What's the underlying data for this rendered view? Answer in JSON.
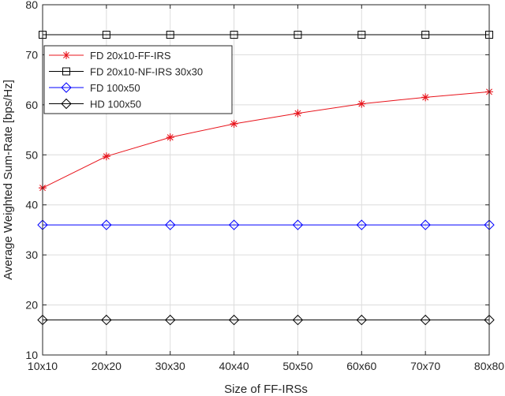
{
  "chart_data": {
    "type": "line",
    "title": "",
    "xlabel": "Size of FF-IRSs",
    "ylabel": "Average Weighted Sum-Rate [bps/Hz]",
    "categories": [
      "10x10",
      "20x20",
      "30x30",
      "40x40",
      "50x50",
      "60x60",
      "70x70",
      "80x80"
    ],
    "ylim": [
      10,
      80
    ],
    "yticks": [
      "10",
      "20",
      "30",
      "40",
      "50",
      "60",
      "70",
      "80"
    ],
    "grid": true,
    "legend_position": "top-left",
    "series": [
      {
        "name": "FD 20x10-FF-IRS",
        "color": "#e8141c",
        "marker": "star",
        "values": [
          43.4,
          49.7,
          53.5,
          56.2,
          58.3,
          60.2,
          61.5,
          62.6
        ]
      },
      {
        "name": "FD 20x10-NF-IRS 30x30",
        "color": "#000000",
        "marker": "square",
        "values": [
          74,
          74,
          74,
          74,
          74,
          74,
          74,
          74
        ]
      },
      {
        "name": "FD 100x50",
        "color": "#0000ff",
        "marker": "diamond",
        "values": [
          36,
          36,
          36,
          36,
          36,
          36,
          36,
          36
        ]
      },
      {
        "name": "HD 100x50",
        "color": "#000000",
        "marker": "diamond",
        "values": [
          17,
          17,
          17,
          17,
          17,
          17,
          17,
          17
        ]
      }
    ]
  }
}
